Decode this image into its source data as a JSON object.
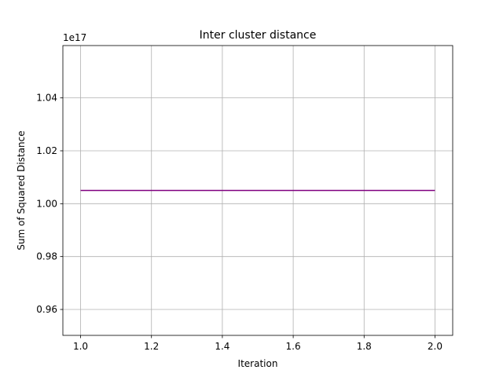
{
  "chart_data": {
    "type": "line",
    "title": "Inter cluster distance",
    "xlabel": "Iteration",
    "ylabel": "Sum of Squared Distance",
    "offset_label": "1e17",
    "xlim": [
      0.95,
      2.05
    ],
    "ylim": [
      0.9502,
      1.0598
    ],
    "x_ticks": [
      1.0,
      1.2,
      1.4,
      1.6,
      1.8,
      2.0
    ],
    "x_tick_labels": [
      "1.0",
      "1.2",
      "1.4",
      "1.6",
      "1.8",
      "2.0"
    ],
    "y_ticks": [
      0.96,
      0.98,
      1.0,
      1.02,
      1.04
    ],
    "y_tick_labels": [
      "0.96",
      "0.98",
      "1.00",
      "1.02",
      "1.04"
    ],
    "grid": true,
    "series": [
      {
        "x": [
          1,
          2
        ],
        "y": [
          1.005,
          1.005
        ],
        "color": "#800080"
      }
    ]
  }
}
